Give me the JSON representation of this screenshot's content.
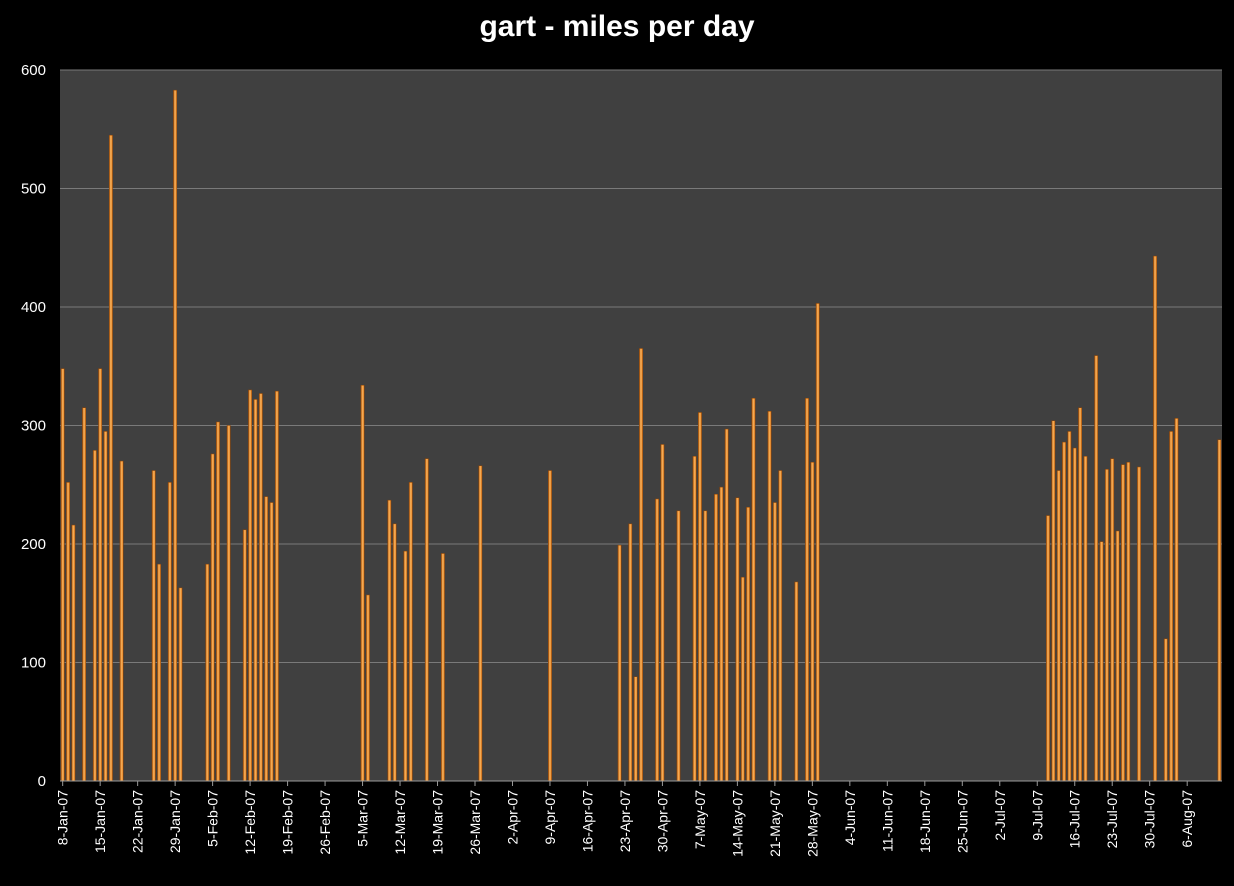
{
  "chart_data": {
    "type": "bar",
    "title": "gart - miles per day",
    "xlabel": "",
    "ylabel": "",
    "ylim": [
      0,
      600
    ],
    "y_ticks": [
      0,
      100,
      200,
      300,
      400,
      500,
      600
    ],
    "x_range": [
      "2007-01-08",
      "2007-08-12"
    ],
    "x_tick_labels": [
      "8-Jan-07",
      "15-Jan-07",
      "22-Jan-07",
      "29-Jan-07",
      "5-Feb-07",
      "12-Feb-07",
      "19-Feb-07",
      "26-Feb-07",
      "5-Mar-07",
      "12-Mar-07",
      "19-Mar-07",
      "26-Mar-07",
      "2-Apr-07",
      "9-Apr-07",
      "16-Apr-07",
      "23-Apr-07",
      "30-Apr-07",
      "7-May-07",
      "14-May-07",
      "21-May-07",
      "28-May-07",
      "4-Jun-07",
      "11-Jun-07",
      "18-Jun-07",
      "25-Jun-07",
      "2-Jul-07",
      "9-Jul-07",
      "16-Jul-07",
      "23-Jul-07",
      "30-Jul-07",
      "6-Aug-07"
    ],
    "grid": "horizontal",
    "legend": "none",
    "colors": {
      "bar": "#e87f1e",
      "bar_highlight": "#f7b25c",
      "plot_bg": "#404040",
      "page_bg": "#000000",
      "grid": "#7a7a7a",
      "text": "#ffffff"
    },
    "points": [
      {
        "date": "2007-01-08",
        "value": 348
      },
      {
        "date": "2007-01-09",
        "value": 252
      },
      {
        "date": "2007-01-10",
        "value": 216
      },
      {
        "date": "2007-01-12",
        "value": 315
      },
      {
        "date": "2007-01-14",
        "value": 279
      },
      {
        "date": "2007-01-15",
        "value": 348
      },
      {
        "date": "2007-01-16",
        "value": 295
      },
      {
        "date": "2007-01-17",
        "value": 545
      },
      {
        "date": "2007-01-19",
        "value": 270
      },
      {
        "date": "2007-01-25",
        "value": 262
      },
      {
        "date": "2007-01-26",
        "value": 183
      },
      {
        "date": "2007-01-28",
        "value": 252
      },
      {
        "date": "2007-01-29",
        "value": 583
      },
      {
        "date": "2007-01-30",
        "value": 163
      },
      {
        "date": "2007-02-04",
        "value": 183
      },
      {
        "date": "2007-02-05",
        "value": 276
      },
      {
        "date": "2007-02-06",
        "value": 303
      },
      {
        "date": "2007-02-08",
        "value": 300
      },
      {
        "date": "2007-02-11",
        "value": 212
      },
      {
        "date": "2007-02-12",
        "value": 330
      },
      {
        "date": "2007-02-13",
        "value": 322
      },
      {
        "date": "2007-02-14",
        "value": 327
      },
      {
        "date": "2007-02-15",
        "value": 240
      },
      {
        "date": "2007-02-16",
        "value": 235
      },
      {
        "date": "2007-02-17",
        "value": 329
      },
      {
        "date": "2007-03-05",
        "value": 334
      },
      {
        "date": "2007-03-06",
        "value": 157
      },
      {
        "date": "2007-03-10",
        "value": 237
      },
      {
        "date": "2007-03-11",
        "value": 217
      },
      {
        "date": "2007-03-13",
        "value": 194
      },
      {
        "date": "2007-03-14",
        "value": 252
      },
      {
        "date": "2007-03-17",
        "value": 272
      },
      {
        "date": "2007-03-20",
        "value": 192
      },
      {
        "date": "2007-03-27",
        "value": 266
      },
      {
        "date": "2007-04-09",
        "value": 262
      },
      {
        "date": "2007-04-22",
        "value": 199
      },
      {
        "date": "2007-04-24",
        "value": 217
      },
      {
        "date": "2007-04-25",
        "value": 88
      },
      {
        "date": "2007-04-26",
        "value": 365
      },
      {
        "date": "2007-04-29",
        "value": 238
      },
      {
        "date": "2007-04-30",
        "value": 284
      },
      {
        "date": "2007-05-03",
        "value": 228
      },
      {
        "date": "2007-05-06",
        "value": 274
      },
      {
        "date": "2007-05-07",
        "value": 311
      },
      {
        "date": "2007-05-08",
        "value": 228
      },
      {
        "date": "2007-05-10",
        "value": 242
      },
      {
        "date": "2007-05-11",
        "value": 248
      },
      {
        "date": "2007-05-12",
        "value": 297
      },
      {
        "date": "2007-05-14",
        "value": 239
      },
      {
        "date": "2007-05-15",
        "value": 172
      },
      {
        "date": "2007-05-16",
        "value": 231
      },
      {
        "date": "2007-05-17",
        "value": 323
      },
      {
        "date": "2007-05-20",
        "value": 312
      },
      {
        "date": "2007-05-21",
        "value": 235
      },
      {
        "date": "2007-05-22",
        "value": 262
      },
      {
        "date": "2007-05-25",
        "value": 168
      },
      {
        "date": "2007-05-27",
        "value": 323
      },
      {
        "date": "2007-05-28",
        "value": 269
      },
      {
        "date": "2007-05-29",
        "value": 403
      },
      {
        "date": "2007-07-11",
        "value": 224
      },
      {
        "date": "2007-07-12",
        "value": 304
      },
      {
        "date": "2007-07-13",
        "value": 262
      },
      {
        "date": "2007-07-14",
        "value": 286
      },
      {
        "date": "2007-07-15",
        "value": 295
      },
      {
        "date": "2007-07-16",
        "value": 281
      },
      {
        "date": "2007-07-17",
        "value": 315
      },
      {
        "date": "2007-07-18",
        "value": 274
      },
      {
        "date": "2007-07-20",
        "value": 359
      },
      {
        "date": "2007-07-21",
        "value": 202
      },
      {
        "date": "2007-07-22",
        "value": 263
      },
      {
        "date": "2007-07-23",
        "value": 272
      },
      {
        "date": "2007-07-24",
        "value": 211
      },
      {
        "date": "2007-07-25",
        "value": 267
      },
      {
        "date": "2007-07-26",
        "value": 269
      },
      {
        "date": "2007-07-28",
        "value": 265
      },
      {
        "date": "2007-07-31",
        "value": 443
      },
      {
        "date": "2007-08-02",
        "value": 120
      },
      {
        "date": "2007-08-03",
        "value": 295
      },
      {
        "date": "2007-08-04",
        "value": 306
      },
      {
        "date": "2007-08-12",
        "value": 288
      }
    ]
  }
}
